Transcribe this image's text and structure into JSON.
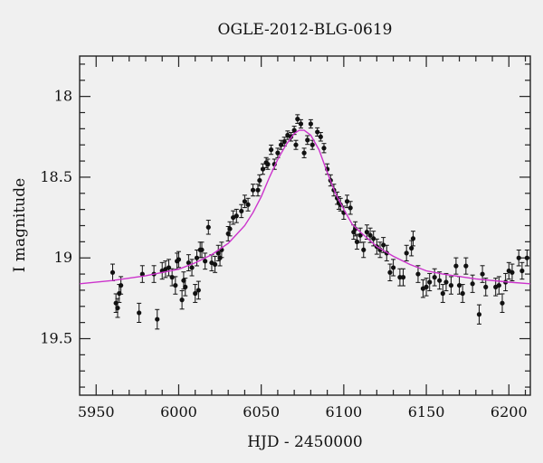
{
  "chart_data": {
    "type": "scatter",
    "title": "OGLE-2012-BLG-0619",
    "xlabel": "HJD - 2450000",
    "ylabel": "I magnitude",
    "xlim": [
      5940,
      6213
    ],
    "ylim": [
      19.85,
      17.75
    ],
    "y_inverted": true,
    "xticks": [
      5950,
      6000,
      6050,
      6100,
      6150,
      6200
    ],
    "yticks": [
      18,
      18.5,
      19,
      19.5
    ],
    "grid": false,
    "colors": {
      "points": "#111111",
      "model": "#cc33cc",
      "background": "#f0f0f0"
    },
    "model": {
      "name": "",
      "x": [
        5940,
        5960,
        5980,
        6000,
        6010,
        6020,
        6030,
        6040,
        6045,
        6050,
        6055,
        6060,
        6065,
        6070,
        6073,
        6076,
        6080,
        6085,
        6090,
        6095,
        6100,
        6105,
        6110,
        6120,
        6130,
        6140,
        6150,
        6160,
        6180,
        6200,
        6213
      ],
      "y": [
        19.16,
        19.14,
        19.11,
        19.07,
        19.03,
        18.98,
        18.91,
        18.8,
        18.72,
        18.62,
        18.5,
        18.39,
        18.3,
        18.23,
        18.21,
        18.21,
        18.24,
        18.33,
        18.47,
        18.6,
        18.7,
        18.79,
        18.84,
        18.93,
        18.99,
        19.04,
        19.08,
        19.1,
        19.13,
        19.15,
        19.16
      ]
    },
    "series": [
      {
        "x": [
          5960,
          5962,
          5963,
          5964,
          5965,
          5976,
          5978,
          5985,
          5987,
          5990,
          5992,
          5994,
          5996,
          5998,
          5999,
          6000,
          6002,
          6003,
          6004,
          6006,
          6008,
          6010,
          6011,
          6012,
          6013,
          6014,
          6016,
          6018,
          6020,
          6022,
          6024,
          6025,
          6026,
          6030,
          6031,
          6033,
          6035,
          6038,
          6040,
          6042,
          6045,
          6048,
          6049,
          6051,
          6053,
          6054,
          6056,
          6058,
          6060,
          6062,
          6064,
          6066,
          6068,
          6070,
          6071,
          6072,
          6074,
          6076,
          6078,
          6080,
          6081,
          6084,
          6086,
          6088,
          6090,
          6092,
          6094,
          6096,
          6097,
          6098,
          6100,
          6102,
          6104,
          6106,
          6107,
          6108,
          6110,
          6112,
          6114,
          6116,
          6118,
          6120,
          6122,
          6124,
          6126,
          6128,
          6130,
          6134,
          6136,
          6138,
          6141,
          6142,
          6145,
          6148,
          6150,
          6152,
          6155,
          6158,
          6160,
          6162,
          6165,
          6168,
          6170,
          6172,
          6174,
          6178,
          6182,
          6184,
          6186,
          6192,
          6194,
          6196,
          6198,
          6200,
          6202,
          6206,
          6208,
          6211
        ],
        "y": [
          19.09,
          19.28,
          19.31,
          19.22,
          19.17,
          19.34,
          19.1,
          19.1,
          19.38,
          19.08,
          19.07,
          19.06,
          19.12,
          19.17,
          19.02,
          19.01,
          19.26,
          19.14,
          19.18,
          19.03,
          19.06,
          19.22,
          19.0,
          19.2,
          18.95,
          18.95,
          19.02,
          18.81,
          19.03,
          19.04,
          18.97,
          19.0,
          18.95,
          18.85,
          18.82,
          18.75,
          18.74,
          18.71,
          18.65,
          18.67,
          18.58,
          18.58,
          18.52,
          18.45,
          18.41,
          18.42,
          18.33,
          18.42,
          18.35,
          18.3,
          18.28,
          18.24,
          18.25,
          18.21,
          18.3,
          18.14,
          18.17,
          18.35,
          18.27,
          18.17,
          18.3,
          18.22,
          18.25,
          18.32,
          18.45,
          18.52,
          18.58,
          18.63,
          18.66,
          18.67,
          18.72,
          18.65,
          18.69,
          18.84,
          18.82,
          18.9,
          18.86,
          18.95,
          18.84,
          18.86,
          18.88,
          18.93,
          18.95,
          18.92,
          18.97,
          19.09,
          19.06,
          19.12,
          19.12,
          18.97,
          18.94,
          18.88,
          19.1,
          19.19,
          19.18,
          19.15,
          19.12,
          19.14,
          19.22,
          19.15,
          19.17,
          19.05,
          19.17,
          19.22,
          19.05,
          19.16,
          19.35,
          19.1,
          19.18,
          19.18,
          19.17,
          19.28,
          19.15,
          19.08,
          19.09,
          19.0,
          19.08,
          19.0
        ]
      }
    ]
  }
}
